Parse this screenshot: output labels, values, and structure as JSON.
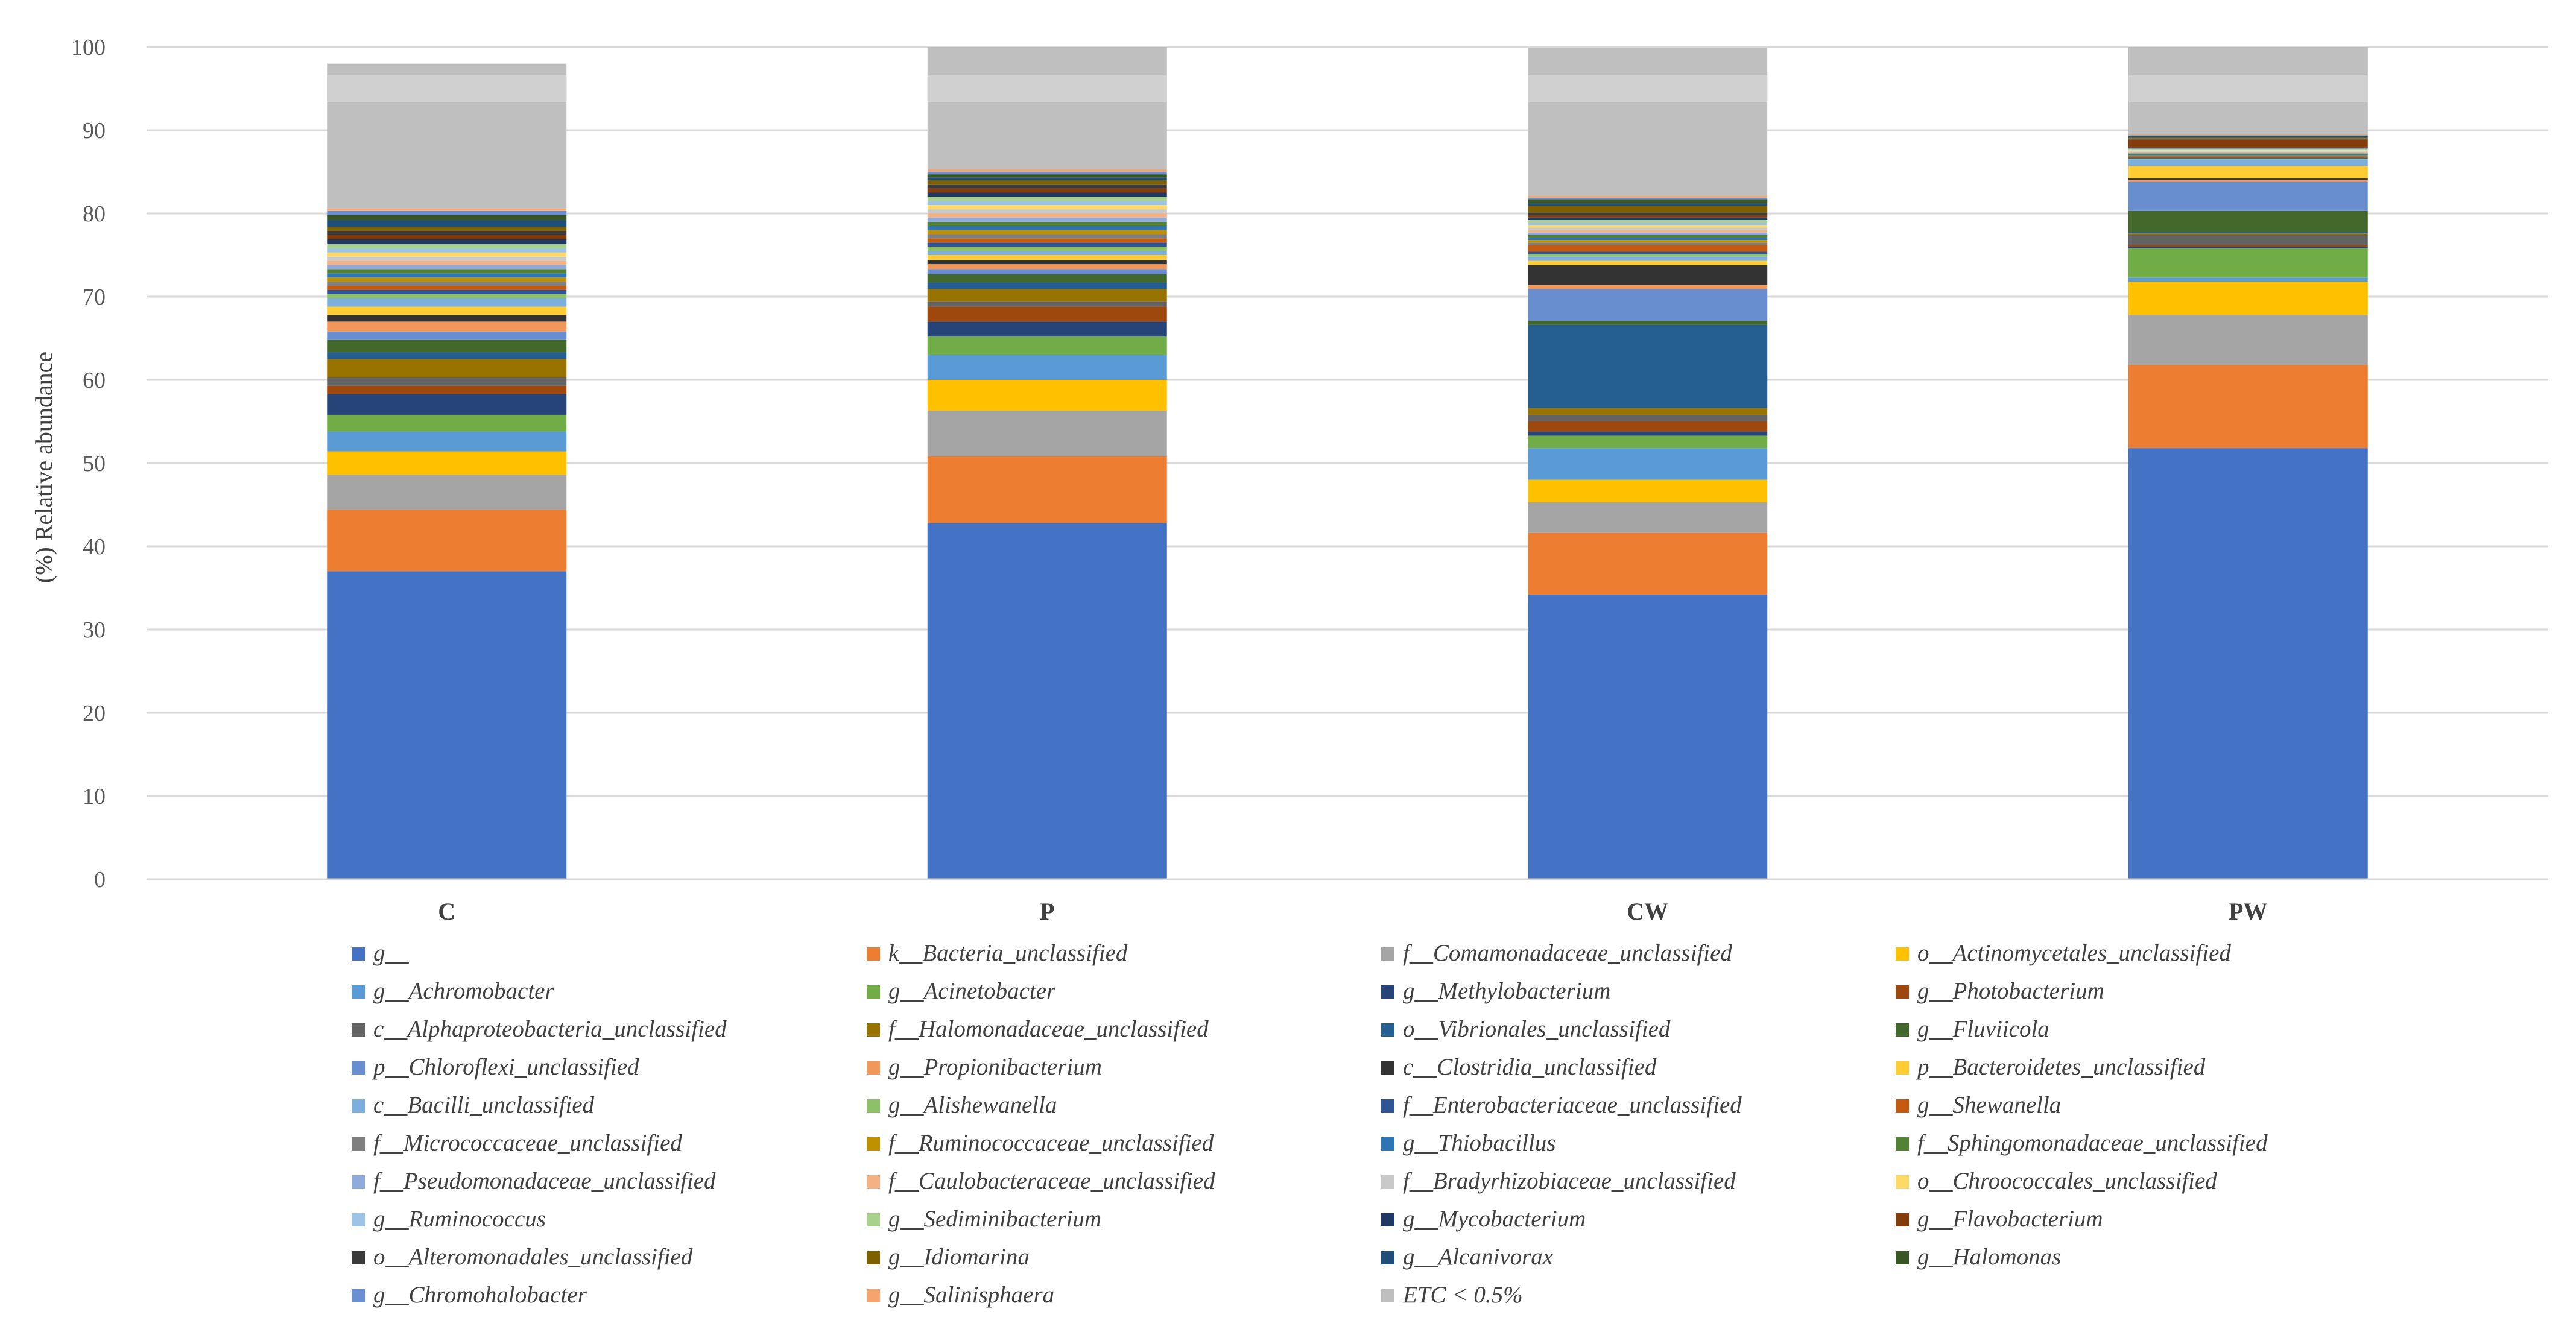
{
  "chart_data": {
    "type": "bar",
    "stacked": true,
    "title": "",
    "xlabel": "",
    "ylabel": "(%) Relative abundance",
    "ylim": [
      0,
      100
    ],
    "yticks": [
      "0",
      "10",
      "20",
      "30",
      "40",
      "50",
      "60",
      "70",
      "80",
      "90",
      "100"
    ],
    "grid": true,
    "legend_position": "bottom",
    "categories": [
      "C",
      "P",
      "CW",
      "PW"
    ],
    "series": [
      {
        "name": "g__",
        "color": "#4472C4",
        "values": [
          37.0,
          42.8,
          34.2,
          51.8
        ]
      },
      {
        "name": "k__Bacteria_unclassified",
        "color": "#ED7D31",
        "values": [
          7.4,
          8.0,
          7.4,
          10.0
        ]
      },
      {
        "name": "f__Comamonadaceae_unclassified",
        "color": "#A5A5A5",
        "values": [
          4.2,
          5.5,
          3.7,
          6.0
        ]
      },
      {
        "name": "o__Actinomycetales_unclassified",
        "color": "#FFC000",
        "values": [
          2.8,
          3.7,
          2.7,
          4.0
        ]
      },
      {
        "name": "g__Achromobacter",
        "color": "#5B9BD5",
        "values": [
          2.4,
          3.0,
          3.8,
          0.5
        ]
      },
      {
        "name": "g__Acinetobacter",
        "color": "#70AD47",
        "values": [
          2.0,
          2.2,
          1.5,
          3.5
        ]
      },
      {
        "name": "g__Methylobacterium",
        "color": "#264478",
        "values": [
          2.5,
          1.8,
          0.5,
          0.2
        ]
      },
      {
        "name": "g__Photobacterium",
        "color": "#9E480E",
        "values": [
          1.0,
          1.8,
          1.2,
          0.2
        ]
      },
      {
        "name": "c__Alphaproteobacteria_unclassified",
        "color": "#636363",
        "values": [
          1.0,
          0.6,
          0.8,
          1.2
        ]
      },
      {
        "name": "f__Halomonadaceae_unclassified",
        "color": "#997300",
        "values": [
          2.2,
          1.5,
          0.8,
          0.2
        ]
      },
      {
        "name": "o__Vibrionales_unclassified",
        "color": "#255E91",
        "values": [
          0.8,
          0.8,
          10.0,
          0.2
        ]
      },
      {
        "name": "g__Fluviicola",
        "color": "#43682B",
        "values": [
          1.5,
          1.0,
          0.5,
          2.5
        ]
      },
      {
        "name": "p__Chloroflexi_unclassified",
        "color": "#698ED0",
        "values": [
          1.0,
          0.6,
          3.8,
          3.5
        ]
      },
      {
        "name": "g__Propionibacterium",
        "color": "#F1975A",
        "values": [
          1.2,
          0.6,
          0.5,
          0.2
        ]
      },
      {
        "name": "c__Clostridia_unclassified",
        "color": "#333333",
        "values": [
          0.8,
          0.5,
          2.4,
          0.2
        ]
      },
      {
        "name": "p__Bacteroidetes_unclassified",
        "color": "#FFCD33",
        "values": [
          1.0,
          0.6,
          0.5,
          1.5
        ]
      },
      {
        "name": "c__Bacilli_unclassified",
        "color": "#7CAFDD",
        "values": [
          1.0,
          0.5,
          0.5,
          0.8
        ]
      },
      {
        "name": "g__Alishewanella",
        "color": "#8CC168",
        "values": [
          0.5,
          0.5,
          0.3,
          0.1
        ]
      },
      {
        "name": "f__Enterobacteriaceae_unclassified",
        "color": "#2F5597",
        "values": [
          0.5,
          0.5,
          0.3,
          0.1
        ]
      },
      {
        "name": "g__Shewanella",
        "color": "#C55A11",
        "values": [
          0.5,
          0.5,
          0.8,
          0.1
        ]
      },
      {
        "name": "f__Micrococcaceae_unclassified",
        "color": "#7F7F7F",
        "values": [
          0.5,
          0.5,
          0.3,
          0.1
        ]
      },
      {
        "name": "f__Ruminococcaceae_unclassified",
        "color": "#BF9000",
        "values": [
          0.5,
          0.5,
          0.3,
          0.1
        ]
      },
      {
        "name": "g__Thiobacillus",
        "color": "#2E75B6",
        "values": [
          0.5,
          0.5,
          0.3,
          0.1
        ]
      },
      {
        "name": "f__Sphingomonadaceae_unclassified",
        "color": "#548235",
        "values": [
          0.5,
          0.5,
          0.3,
          0.1
        ]
      },
      {
        "name": "f__Pseudomonadaceae_unclassified",
        "color": "#8FAADC",
        "values": [
          0.5,
          0.5,
          0.3,
          0.1
        ]
      },
      {
        "name": "f__Caulobacteraceae_unclassified",
        "color": "#F4B183",
        "values": [
          0.5,
          0.5,
          0.3,
          0.1
        ]
      },
      {
        "name": "f__Bradyrhizobiaceae_unclassified",
        "color": "#C9C9C9",
        "values": [
          0.5,
          0.5,
          0.3,
          0.1
        ]
      },
      {
        "name": "o__Chroococcales_unclassified",
        "color": "#FFD966",
        "values": [
          0.5,
          0.5,
          0.3,
          0.1
        ]
      },
      {
        "name": "g__Ruminococcus",
        "color": "#9DC3E6",
        "values": [
          0.5,
          0.5,
          0.3,
          0.1
        ]
      },
      {
        "name": "g__Sediminibacterium",
        "color": "#A9D18E",
        "values": [
          0.5,
          0.5,
          0.3,
          0.1
        ]
      },
      {
        "name": "g__Mycobacterium",
        "color": "#1F3864",
        "values": [
          0.6,
          0.5,
          0.3,
          0.1
        ]
      },
      {
        "name": "g__Flavobacterium",
        "color": "#843C0C",
        "values": [
          0.5,
          0.5,
          0.3,
          1.0
        ]
      },
      {
        "name": "o__Alteromonadales_unclassified",
        "color": "#3A3A3A",
        "values": [
          0.5,
          0.5,
          0.3,
          0.1
        ]
      },
      {
        "name": "g__Idiomarina",
        "color": "#7F6000",
        "values": [
          0.5,
          0.5,
          0.8,
          0.1
        ]
      },
      {
        "name": "g__Alcanivorax",
        "color": "#1F4E79",
        "values": [
          0.8,
          0.3,
          0.3,
          0.1
        ]
      },
      {
        "name": "g__Halomonas",
        "color": "#375623",
        "values": [
          0.6,
          0.4,
          0.5,
          0.1
        ]
      },
      {
        "name": "g__Chromohalobacter",
        "color": "#6A8FD3",
        "values": [
          0.5,
          0.3,
          0.2,
          0.1
        ]
      },
      {
        "name": "g__Salinisphaera",
        "color": "#F4A46C",
        "values": [
          0.3,
          0.3,
          0.2,
          0.1
        ]
      },
      {
        "name": "ETC < 0.5%",
        "color": "#BFBFBF",
        "values": [
          17.4,
          17.0,
          17.8,
          12.9
        ]
      }
    ]
  }
}
